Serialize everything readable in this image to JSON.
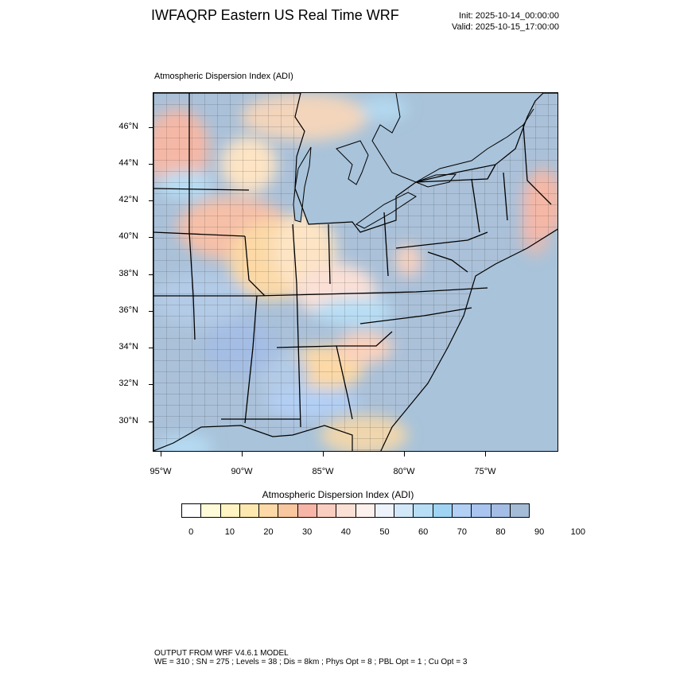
{
  "header": {
    "title": "IWFAQRP Eastern US Real Time WRF",
    "init": "Init: 2025-10-14_00:00:00",
    "valid": "Valid: 2025-10-15_17:00:00"
  },
  "map": {
    "subtitle": "Atmospheric Dispersion Index   (ADI)",
    "lat_labels": [
      "46°N",
      "44°N",
      "42°N",
      "40°N",
      "38°N",
      "36°N",
      "34°N",
      "32°N",
      "30°N"
    ],
    "lon_labels": [
      "95°W",
      "90°W",
      "85°W",
      "80°W",
      "75°W"
    ],
    "colors": {
      "water": "#a8c3da",
      "land_low": "#fde4c4",
      "land_mid": "#fbd2bd",
      "land_high": "#f6b8a6",
      "land_blue": "#b3cbe6",
      "land_steel": "#aac1d9"
    }
  },
  "colorbar": {
    "title": "Atmospheric Dispersion Index  (ADI)",
    "colors": [
      "#ffffff",
      "#fffbd8",
      "#fff4c2",
      "#fde9b0",
      "#fcd9a6",
      "#f8c7a0",
      "#f6b5a6",
      "#f9cdc0",
      "#fbe0d6",
      "#fdf1ed",
      "#edf2fb",
      "#d2e7f7",
      "#b7def5",
      "#9fd5f3",
      "#b2cff4",
      "#a8c4ef",
      "#a4bde4",
      "#a5bcd6"
    ],
    "tick_labels": [
      "0",
      "10",
      "20",
      "30",
      "40",
      "50",
      "60",
      "70",
      "80",
      "90",
      "100"
    ]
  },
  "footer": {
    "line1": "OUTPUT FROM WRF V4.6.1 MODEL",
    "line2": "WE = 310 ; SN = 275 ; Levels = 38 ; Dis = 8km ; Phys Opt = 8 ; PBL Opt = 1 ; Cu Opt = 3"
  }
}
